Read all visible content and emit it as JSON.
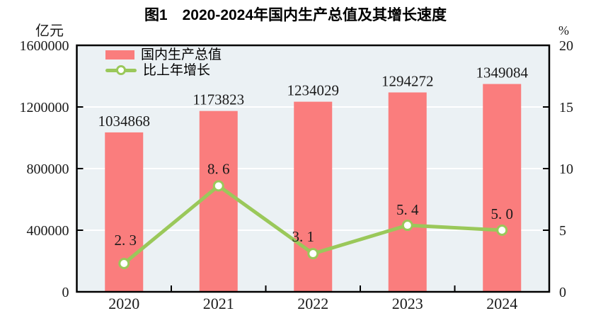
{
  "title": "图1　2020-2024年国内生产总值及其增长速度",
  "left_axis_unit": "亿元",
  "right_axis_unit": "%",
  "legend": [
    {
      "label": "国内生产总值",
      "type": "bar",
      "color": "#FA7D7D"
    },
    {
      "label": "比上年增长",
      "type": "line",
      "color": "#9AC85A"
    }
  ],
  "colors": {
    "bar": "#FA7D7D",
    "line": "#9AC85A",
    "marker_fill": "#FFFFFF",
    "plot_bg": "#EBF1F4",
    "grid": "#FFFFFF",
    "axis": "#000000",
    "text": "#1A1A1A"
  },
  "chart_data": {
    "type": "bar+line",
    "title": "图1　2020-2024年国内生产总值及其增长速度",
    "categories": [
      "2020",
      "2021",
      "2022",
      "2023",
      "2024"
    ],
    "series": [
      {
        "name": "国内生产总值",
        "type": "bar",
        "axis": "left",
        "unit": "亿元",
        "values": [
          1034868,
          1173823,
          1234029,
          1294272,
          1349084
        ],
        "data_labels": [
          "1034868",
          "1173823",
          "1234029",
          "1294272",
          "1349084"
        ]
      },
      {
        "name": "比上年增长",
        "type": "line",
        "axis": "right",
        "unit": "%",
        "values": [
          2.3,
          8.6,
          3.1,
          5.4,
          5.0
        ],
        "data_labels": [
          "2. 3",
          "8. 6",
          "3. 1",
          "5. 4",
          "5. 0"
        ]
      }
    ],
    "left_axis": {
      "min": 0,
      "max": 1600000,
      "ticks": [
        0,
        400000,
        800000,
        1200000,
        1600000
      ],
      "tick_labels": [
        "0",
        "400000",
        "800000",
        "1200000",
        "1600000"
      ],
      "unit": "亿元"
    },
    "right_axis": {
      "min": 0,
      "max": 20,
      "ticks": [
        0,
        5,
        10,
        15,
        20
      ],
      "tick_labels": [
        "0",
        "5",
        "10",
        "15",
        "20"
      ],
      "unit": "%"
    },
    "grid": true,
    "legend_position": "top-left"
  }
}
